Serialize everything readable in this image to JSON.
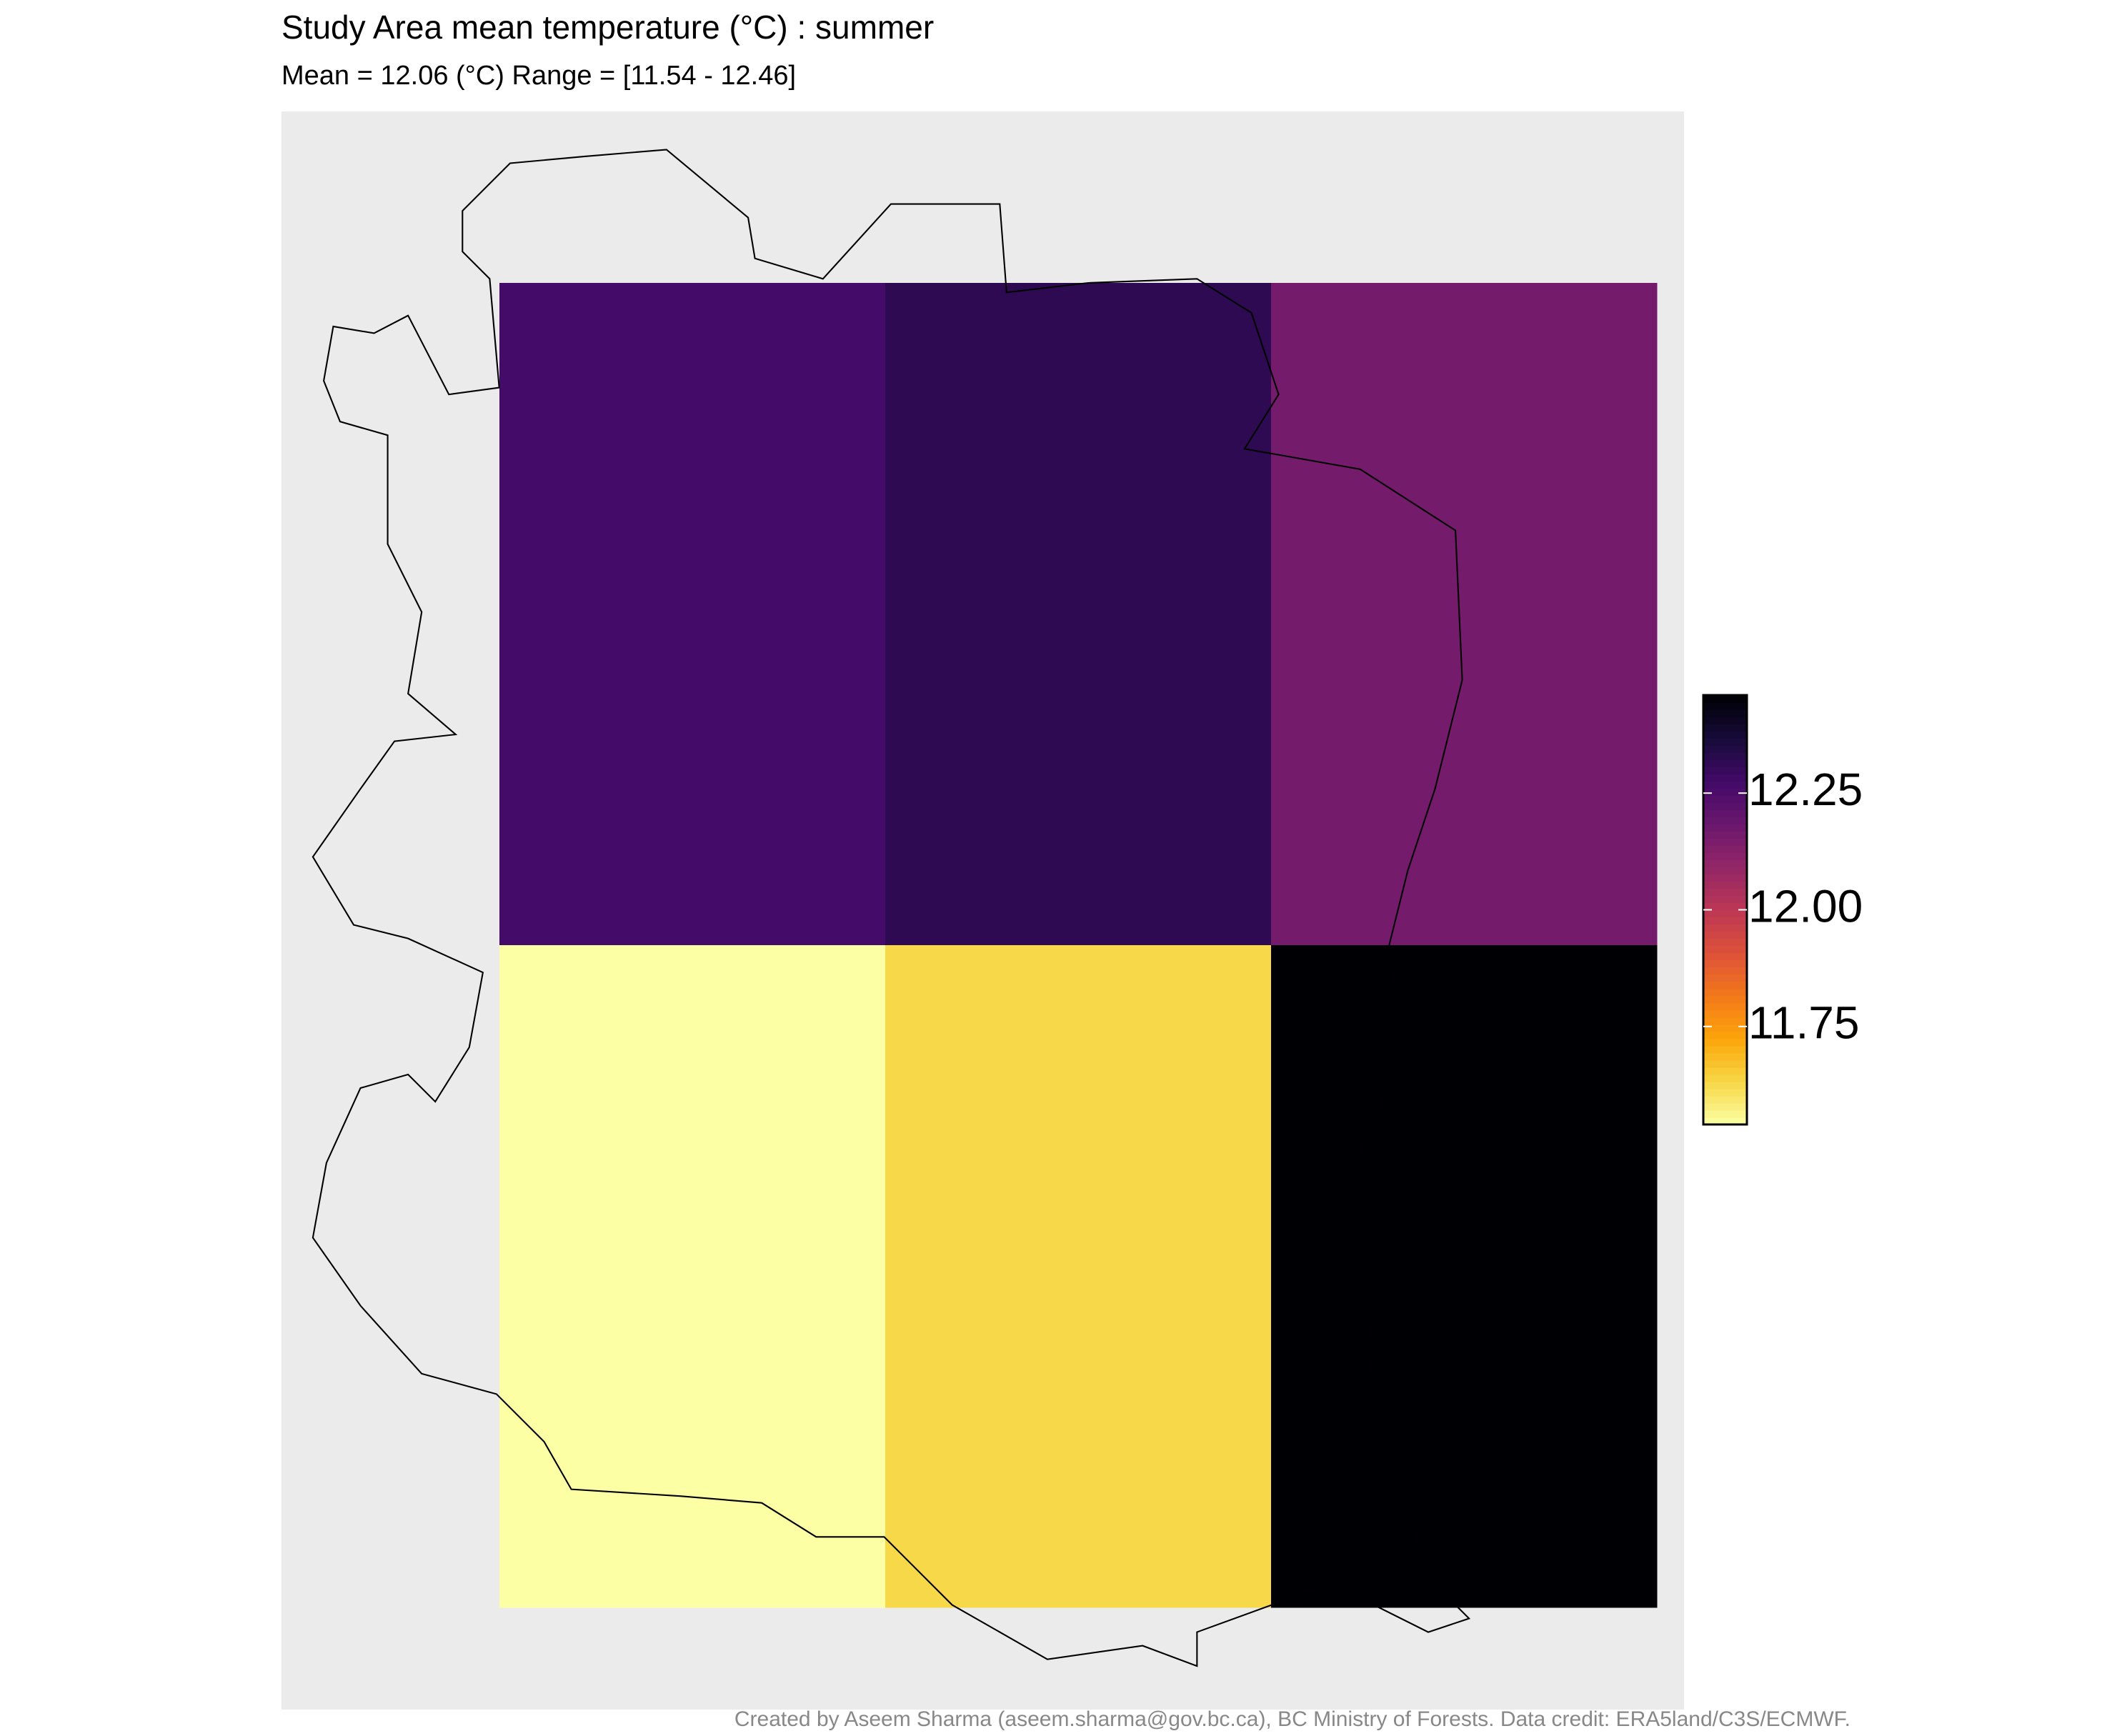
{
  "chart_data": {
    "type": "heatmap",
    "title": "Study Area mean temperature (°C) : summer",
    "subtitle": "Mean = 12.06 (°C)  Range = [11.54 - 12.46]",
    "caption": "Created by Aseem Sharma (aseem.sharma@gov.bc.ca), BC Ministry of Forests. Data credit: ERA5land/C3S/ECMWF.",
    "values": [
      [
        12.27,
        12.32,
        12.16
      ],
      [
        11.54,
        11.63,
        12.46
      ]
    ],
    "colormap": "inferno",
    "reverse": true,
    "zlim": [
      11.54,
      12.46
    ],
    "zticks": [
      11.75,
      {
        "value": 12,
        "label": "12.00"
      },
      12.25
    ]
  }
}
